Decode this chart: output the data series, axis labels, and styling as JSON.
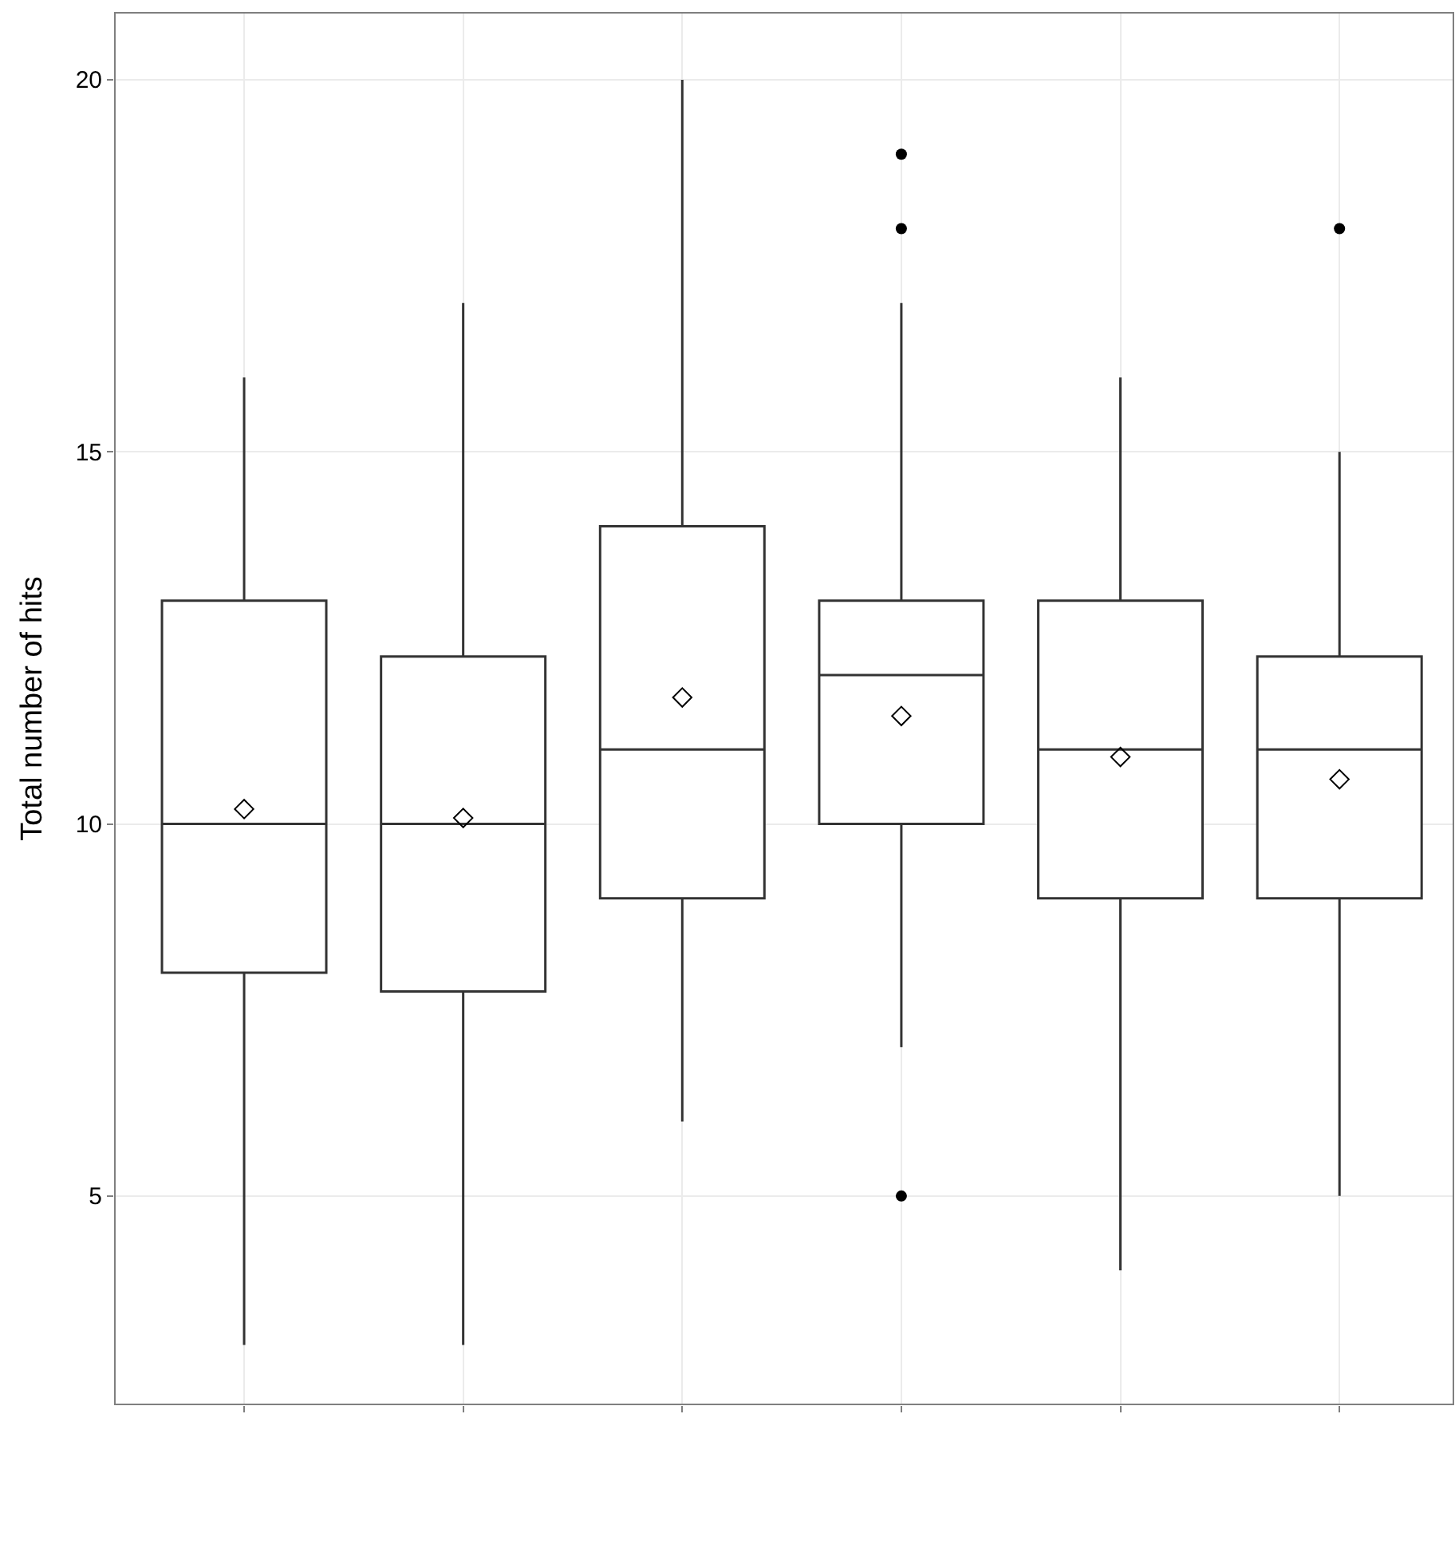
{
  "chart_data": {
    "type": "box",
    "ylabel": "Total number of hits",
    "categories": [
      null,
      null,
      null,
      null,
      null,
      null
    ],
    "boxes": [
      {
        "low": 3,
        "q1": 8,
        "median": 10,
        "q3": 13,
        "high": 16,
        "mean": 10.2
      },
      {
        "low": 3,
        "q1": 7.75,
        "median": 10,
        "q3": 12.25,
        "high": 17,
        "mean": 10.08
      },
      {
        "low": 6,
        "q1": 9,
        "median": 11,
        "q3": 14,
        "high": 20,
        "mean": 11.7
      },
      {
        "low": 7,
        "q1": 10,
        "median": 12,
        "q3": 13,
        "high": 17,
        "mean": 11.45,
        "outliers": [
          19,
          18,
          5
        ]
      },
      {
        "low": 4,
        "q1": 9,
        "median": 11,
        "q3": 13,
        "high": 16,
        "mean": 10.9
      },
      {
        "low": 5,
        "q1": 9,
        "median": 11,
        "q3": 12.25,
        "high": 15,
        "mean": 10.6,
        "outliers": [
          18
        ]
      }
    ],
    "color": "#333333",
    "ylim": [
      2.2,
      20.9
    ],
    "yticks": [
      5,
      10,
      15,
      20
    ],
    "grid": true,
    "tick_labels": "y"
  }
}
